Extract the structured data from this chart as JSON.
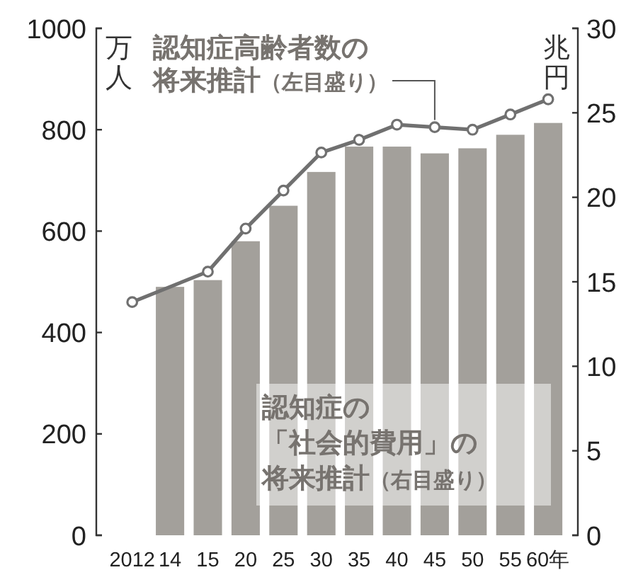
{
  "chart_data": {
    "type": "bar",
    "categories": [
      "2012",
      "14",
      "15",
      "20",
      "25",
      "30",
      "35",
      "40",
      "45",
      "50",
      "55",
      "60年"
    ],
    "series": [
      {
        "color": "#a3a09b",
        "axis": "y2",
        "values": [
          null,
          14.7,
          15.1,
          17.4,
          19.5,
          21.5,
          23.0,
          23.0,
          22.6,
          22.9,
          23.7,
          24.4
        ]
      },
      {
        "type": "line",
        "color": "#707070",
        "values": [
          460,
          null,
          520,
          605,
          680,
          755,
          780,
          810,
          805,
          800,
          830,
          860
        ]
      }
    ],
    "ylim": [
      0,
      1000
    ],
    "yticks": [
      0,
      200,
      400,
      600,
      800,
      1000
    ],
    "ylabel": "万人",
    "y2lim": [
      0,
      30
    ],
    "y2ticks": [
      0,
      5,
      10,
      15,
      20,
      25,
      30
    ],
    "y2label": "兆円",
    "marker": "circle",
    "annotations": [
      {
        "text": "認知症高齢者数の将来推計（左目盛り）",
        "x": "45",
        "y": 805
      },
      "認知症の「社会的費用」の将来推計（右目盛り）"
    ]
  }
}
